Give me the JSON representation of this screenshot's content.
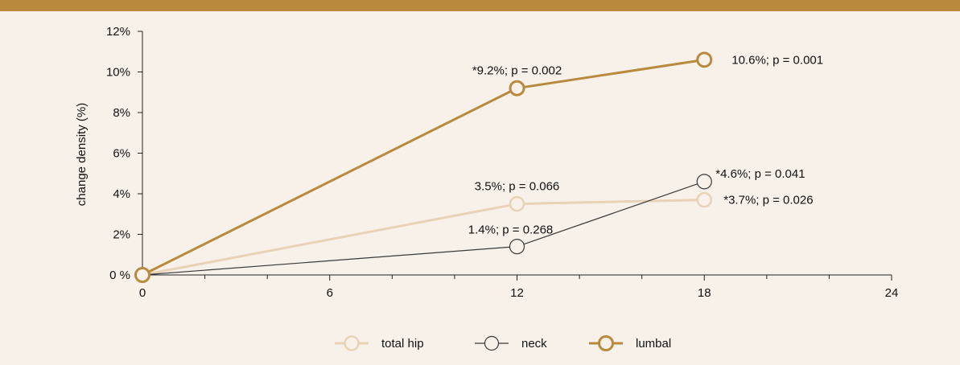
{
  "colors": {
    "background": "#f7f1ea",
    "top_bar": "#b98a3e",
    "axis": "#222222"
  },
  "chart_data": {
    "type": "line",
    "title": "",
    "xlabel": "",
    "ylabel": "change density (%)",
    "xlim": [
      0,
      24
    ],
    "ylim": [
      0,
      12
    ],
    "x_ticks": [
      0,
      6,
      12,
      18,
      24
    ],
    "x_minor_step": 2,
    "y_ticks": [
      {
        "value": 0,
        "label": "0 %"
      },
      {
        "value": 2,
        "label": "2%"
      },
      {
        "value": 4,
        "label": "4%"
      },
      {
        "value": 6,
        "label": "6%"
      },
      {
        "value": 8,
        "label": "8%"
      },
      {
        "value": 10,
        "label": "10%"
      },
      {
        "value": 12,
        "label": "12%"
      }
    ],
    "grid": false,
    "legend_position": "bottom-center",
    "series": [
      {
        "name": "total hip",
        "color": "#e8d3b6",
        "x": [
          0,
          12,
          18
        ],
        "y": [
          0,
          3.5,
          3.7
        ],
        "labels": [
          "",
          "3.5%; p = 0.066",
          "*3.7%; p = 0.026"
        ]
      },
      {
        "name": "neck",
        "color": "#3a3a3a",
        "x": [
          0,
          12,
          18
        ],
        "y": [
          0,
          1.4,
          4.6
        ],
        "labels": [
          "",
          "1.4%; p = 0.268",
          "*4.6%; p = 0.041"
        ]
      },
      {
        "name": "lumbal",
        "color": "#b98a3e",
        "x": [
          0,
          12,
          18
        ],
        "y": [
          0,
          9.2,
          10.6
        ],
        "labels": [
          "",
          "*9.2%; p = 0.002",
          "10.6%; p = 0.001"
        ]
      }
    ]
  }
}
